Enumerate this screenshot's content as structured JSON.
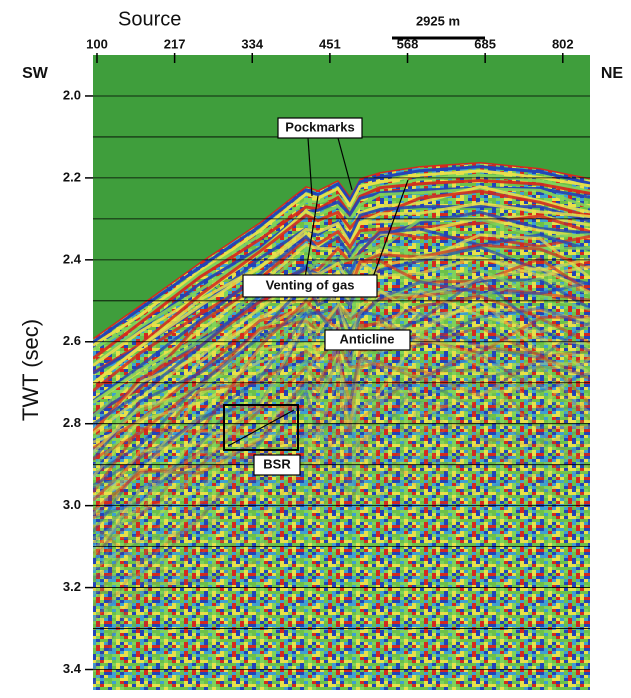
{
  "chart_data": {
    "type": "seismic",
    "x_label": "Source",
    "y_label": "TWT (sec)",
    "left_label": "SW",
    "right_label": "NE",
    "scale_bar": "2925 m",
    "xlim": [
      94,
      843
    ],
    "xticks": [
      100,
      217,
      334,
      451,
      568,
      685,
      802
    ],
    "ylim": [
      1.9,
      3.45
    ],
    "y_inverted": true,
    "yticks": [
      {
        "value": 2,
        "label": "2.0"
      },
      2.2,
      2.4,
      2.6,
      2.8,
      {
        "value": 3,
        "label": "3.0"
      },
      3.2,
      3.4
    ],
    "minor_yticks": [
      2.1,
      2.3,
      2.5,
      2.7,
      2.9,
      3.1,
      3.3
    ],
    "grid": true,
    "annotations": [
      "Pockmarks",
      "Venting of gas",
      "Anticline",
      "BSR"
    ]
  }
}
